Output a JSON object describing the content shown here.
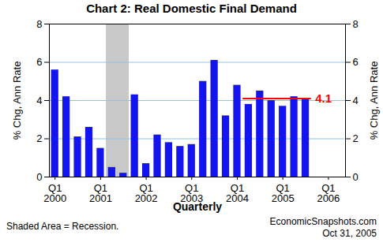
{
  "chart_data": {
    "type": "bar",
    "title": "Chart 2: Real Domestic Final Demand",
    "x_label": "Quarterly",
    "y_label": "% Chg, Ann Rate",
    "y2_label": "% Chg, Ann Rate",
    "categories": [
      "Q1\n2000",
      null,
      null,
      null,
      "Q1\n2001",
      null,
      null,
      null,
      "Q1\n2002",
      null,
      null,
      null,
      "Q1\n2003",
      null,
      null,
      null,
      "Q1\n2004",
      null,
      null,
      null,
      "Q1\n2005",
      null,
      null,
      null,
      "Q1\n2006",
      null
    ],
    "values": [
      5.6,
      4.2,
      2.1,
      2.6,
      1.5,
      0.5,
      0.2,
      4.3,
      0.7,
      2.2,
      1.8,
      1.6,
      1.7,
      5.0,
      6.1,
      3.2,
      4.8,
      3.8,
      4.5,
      4.0,
      3.7,
      4.2,
      4.1,
      null,
      null,
      null
    ],
    "color": "#1414f0",
    "ylim": [
      0,
      8
    ],
    "yticks": [
      0,
      2,
      4,
      6,
      8
    ],
    "y2lim": [
      0,
      8
    ],
    "y2ticks": [
      0,
      2,
      4,
      6,
      8
    ],
    "grid": true,
    "shaded": {
      "from": 5,
      "to": 6,
      "label": "Shaded Area = Recession.",
      "color": "#c8c8c8"
    },
    "annotation": {
      "text": "4.1",
      "value": 4.1,
      "from": 17,
      "to": 22,
      "color": "#ff0000"
    },
    "source": "EconomicSnapshots.com",
    "date": "Oct 31, 2005"
  }
}
